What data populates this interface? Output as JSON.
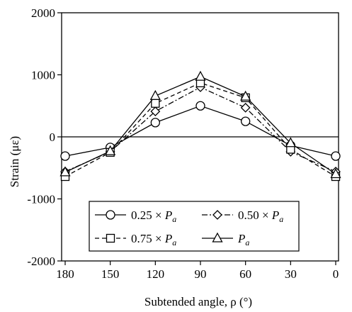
{
  "chart_data": {
    "type": "line",
    "xlabel": "Subtended angle, ρ (°)",
    "ylabel": "Strain (με)",
    "xlim": [
      180,
      0
    ],
    "ylim": [
      -2000,
      2000
    ],
    "x_ticks": [
      "180",
      "150",
      "120",
      "90",
      "60",
      "30",
      "0"
    ],
    "y_ticks": [
      "2000",
      "1000",
      "0",
      "-1000",
      "-2000"
    ],
    "x": [
      180,
      150,
      120,
      90,
      60,
      30,
      0
    ],
    "grid": false,
    "legend_position": "lower-center",
    "series": [
      {
        "name": "0.25 × Pa",
        "marker": "circle",
        "line": "solid",
        "values": [
          -310,
          -170,
          230,
          500,
          250,
          -140,
          -310
        ]
      },
      {
        "name": "0.50 × Pa",
        "marker": "diamond",
        "line": "dash-dot",
        "values": [
          -560,
          -240,
          410,
          800,
          470,
          -240,
          -560
        ]
      },
      {
        "name": "0.75 × Pa",
        "marker": "square",
        "line": "dashed",
        "values": [
          -640,
          -250,
          540,
          870,
          630,
          -200,
          -640
        ]
      },
      {
        "name": "Pa",
        "marker": "triangle",
        "line": "solid",
        "values": [
          -570,
          -230,
          660,
          970,
          650,
          -100,
          -600
        ]
      }
    ],
    "legend": [
      {
        "prefix": "0.25 × ",
        "var": "P",
        "sub": "a"
      },
      {
        "prefix": "0.50 × ",
        "var": "P",
        "sub": "a"
      },
      {
        "prefix": "0.75 × ",
        "var": "P",
        "sub": "a"
      },
      {
        "prefix": "",
        "var": "P",
        "sub": "a"
      }
    ]
  }
}
